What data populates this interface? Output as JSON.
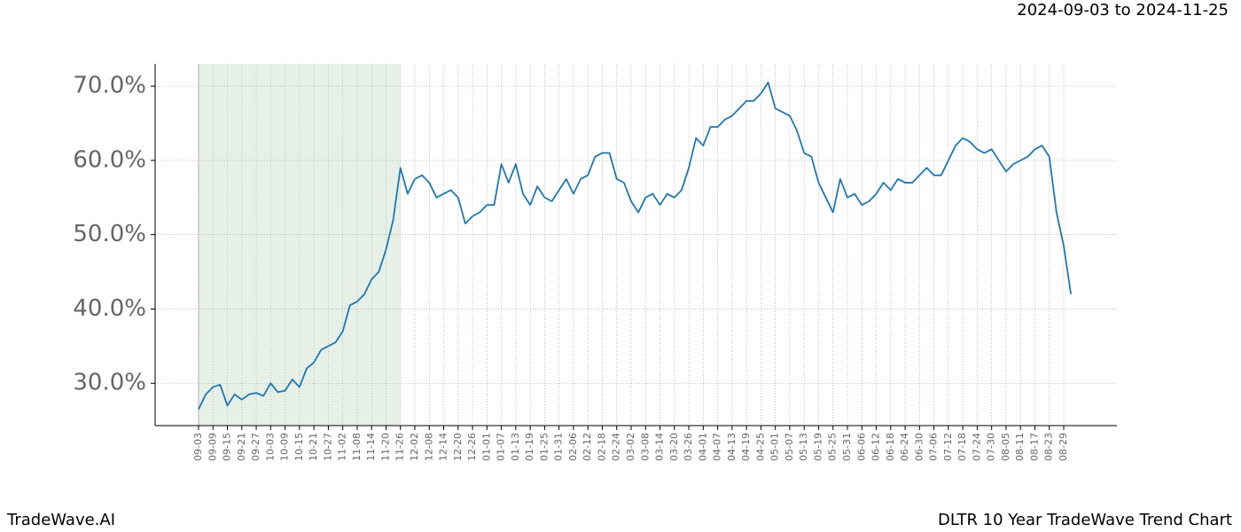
{
  "chart_data": {
    "type": "line",
    "title": "DLTR 10 Year TradeWave Trend Chart",
    "date_range": "2024-09-03 to 2024-11-25",
    "brand": "TradeWave.AI",
    "categories": [
      "09-03",
      null,
      "09-09",
      null,
      "09-15",
      null,
      "09-21",
      null,
      "09-27",
      null,
      "10-03",
      null,
      "10-09",
      null,
      "10-15",
      null,
      "10-21",
      null,
      "10-27",
      null,
      "11-02",
      null,
      "11-08",
      null,
      "11-14",
      null,
      "11-20",
      null,
      "11-26",
      null,
      "12-02",
      null,
      "12-08",
      null,
      "12-14",
      null,
      "12-20",
      null,
      "12-26",
      null,
      "01-01",
      null,
      "01-07",
      null,
      "01-13",
      null,
      "01-19",
      null,
      "01-25",
      null,
      "01-31",
      null,
      "02-06",
      null,
      "02-12",
      null,
      "02-18",
      null,
      "02-24",
      null,
      "03-02",
      null,
      "03-08",
      null,
      "03-14",
      null,
      "03-20",
      null,
      "03-26",
      null,
      "04-01",
      null,
      "04-07",
      null,
      "04-13",
      null,
      "04-19",
      null,
      "04-25",
      null,
      "05-01",
      null,
      "05-07",
      null,
      "05-13",
      null,
      "05-19",
      null,
      "05-25",
      null,
      "05-31",
      null,
      "06-06",
      null,
      "06-12",
      null,
      "06-18",
      null,
      "06-24",
      null,
      "06-30",
      null,
      "07-06",
      null,
      "07-12",
      null,
      "07-18",
      null,
      "07-24",
      null,
      "07-30",
      null,
      "08-05",
      null,
      "08-11",
      null,
      "08-17",
      null,
      "08-23",
      null,
      "08-29",
      null
    ],
    "values": [
      26.5,
      28.5,
      29.5,
      29.8,
      27.0,
      28.5,
      27.8,
      28.5,
      28.7,
      28.3,
      30.0,
      28.8,
      29.0,
      30.5,
      29.5,
      32.0,
      32.8,
      34.5,
      35.0,
      35.5,
      37.0,
      40.5,
      41.0,
      42.0,
      44.0,
      45.0,
      48.0,
      52.0,
      59.0,
      55.5,
      57.5,
      58.0,
      57.0,
      55.0,
      55.5,
      56.0,
      55.0,
      51.5,
      52.5,
      53.0,
      54.0,
      54.0,
      59.5,
      57.0,
      59.5,
      55.5,
      54.0,
      56.5,
      55.0,
      54.5,
      56.0,
      57.5,
      55.5,
      57.5,
      58.0,
      60.5,
      61.0,
      61.0,
      57.5,
      57.0,
      54.5,
      53.0,
      55.0,
      55.5,
      54.0,
      55.5,
      55.0,
      56.0,
      59.0,
      63.0,
      62.0,
      64.5,
      64.5,
      65.5,
      66.0,
      67.0,
      68.0,
      68.0,
      69.0,
      70.5,
      67.0,
      66.5,
      66.0,
      64.0,
      61.0,
      60.5,
      57.0,
      55.0,
      53.0,
      57.5,
      55.0,
      55.5,
      54.0,
      54.5,
      55.5,
      57.0,
      56.0,
      57.5,
      57.0,
      57.0,
      58.0,
      59.0,
      58.0,
      58.0,
      60.0,
      62.0,
      63.0,
      62.5,
      61.5,
      61.0,
      61.5,
      60.0,
      58.5,
      59.5,
      60.0,
      60.5,
      61.5,
      62.0,
      60.5,
      53.0,
      48.5,
      42.0
    ],
    "color": "#1f77b4",
    "highlight_range": [
      "09-03",
      "11-26"
    ],
    "highlight_color": "#e6f0e6",
    "ylim": [
      24.3,
      73.0
    ],
    "yticks": [
      {
        "value": 30,
        "label": "30.0%"
      },
      {
        "value": 40,
        "label": "40.0%"
      },
      {
        "value": 50,
        "label": "50.0%"
      },
      {
        "value": 60,
        "label": "60.0%"
      },
      {
        "value": 70,
        "label": "70.0%"
      }
    ],
    "grid": true
  }
}
